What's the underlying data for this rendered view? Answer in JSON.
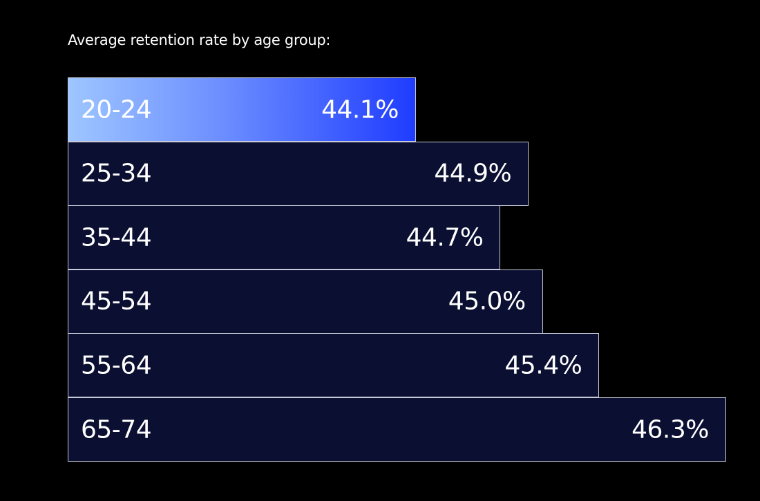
{
  "title": "Average retention rate by age group:",
  "colors": {
    "background": "#000000",
    "bar_fill": "#0b1033",
    "bar_border": "#c9ccd8",
    "highlight_start": "#9ec6ff",
    "highlight_end": "#1f3cff",
    "text": "#ffffff"
  },
  "chart_data": {
    "type": "bar",
    "orientation": "horizontal",
    "title": "Average retention rate by age group:",
    "categories": [
      "20-24",
      "25-34",
      "35-44",
      "45-54",
      "55-64",
      "65-74"
    ],
    "values": [
      44.1,
      44.9,
      44.7,
      45.0,
      45.4,
      46.3
    ],
    "value_labels": [
      "44.1%",
      "44.9%",
      "44.7%",
      "45.0%",
      "45.4%",
      "46.3%"
    ],
    "unit": "%",
    "highlighted_category": "20-24",
    "grid": false,
    "legend": "none"
  }
}
